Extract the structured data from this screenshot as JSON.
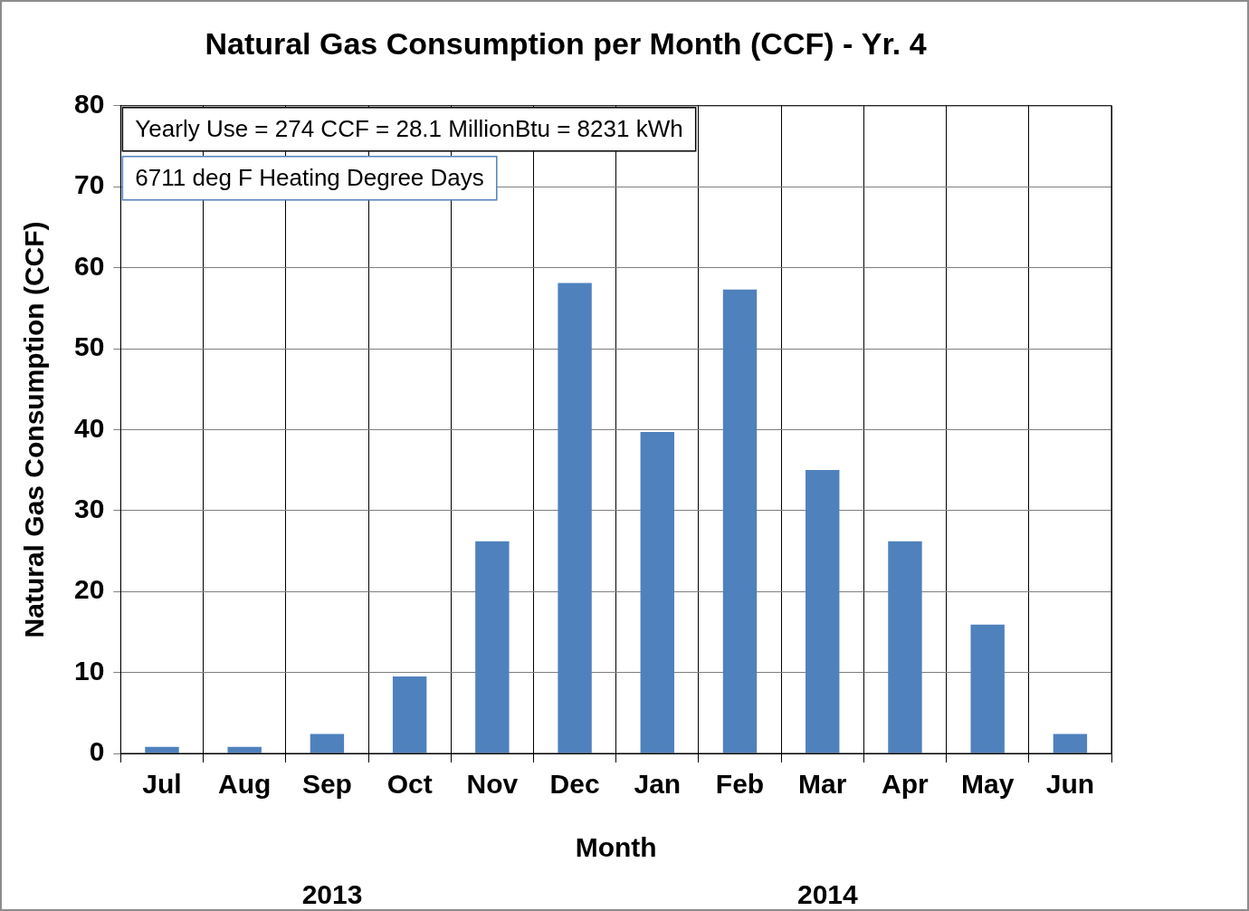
{
  "chart_data": {
    "type": "bar",
    "title": "Natural Gas Consumption per Month (CCF) - Yr. 4",
    "x_label": "Month",
    "y_label": "Natural Gas Consumption (CCF)",
    "categories": [
      "Jul",
      "Aug",
      "Sep",
      "Oct",
      "Nov",
      "Dec",
      "Jan",
      "Feb",
      "Mar",
      "Apr",
      "May",
      "Jun"
    ],
    "values": [
      0.8,
      0.8,
      2.4,
      9.5,
      26.2,
      58.1,
      39.7,
      57.3,
      35.0,
      26.2,
      15.9,
      2.4
    ],
    "x_groups": [
      {
        "label": "2013",
        "count": 6
      },
      {
        "label": "2014",
        "count": 6
      }
    ],
    "annotations": [
      "Yearly Use = 274 CCF = 28.1 MillionBtu = 8231 kWh",
      "6711 deg F Heating Degree Days"
    ],
    "color": "#4f81bd",
    "ylim": [
      0,
      80
    ],
    "yticks": [
      0,
      10,
      20,
      30,
      40,
      50,
      60,
      70,
      80
    ],
    "grid": true
  }
}
